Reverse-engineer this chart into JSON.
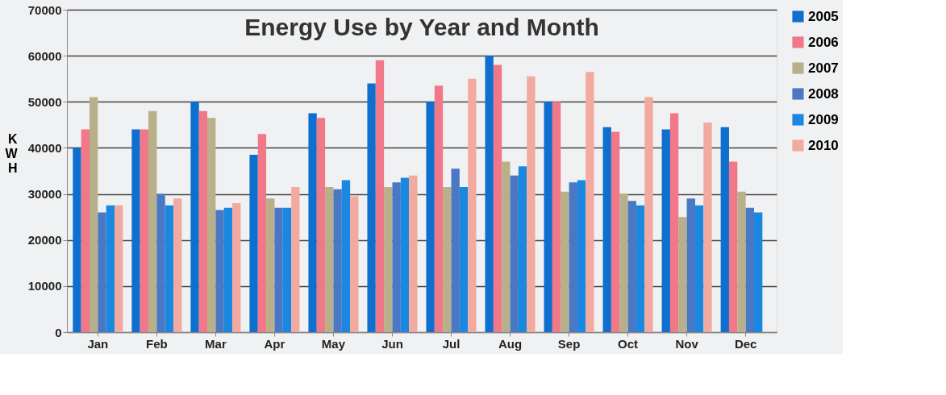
{
  "chart_data": {
    "type": "bar",
    "title": "Energy Use by Year and Month",
    "ylabel": "KWH",
    "categories": [
      "Jan",
      "Feb",
      "Mar",
      "Apr",
      "May",
      "Jun",
      "Jul",
      "Aug",
      "Sep",
      "Oct",
      "Nov",
      "Dec"
    ],
    "series": [
      {
        "name": "2005",
        "color": "#0f6fce",
        "values": [
          40000,
          44000,
          50000,
          38500,
          47500,
          54000,
          50000,
          60000,
          50000,
          44500,
          44000,
          44500
        ]
      },
      {
        "name": "2006",
        "color": "#f07888",
        "values": [
          44000,
          44000,
          48000,
          43000,
          46500,
          59000,
          53500,
          58000,
          50000,
          43500,
          47500,
          37000
        ]
      },
      {
        "name": "2007",
        "color": "#b8b08a",
        "values": [
          51000,
          48000,
          46500,
          29000,
          31500,
          31500,
          31500,
          37000,
          30500,
          30000,
          25000,
          30500
        ]
      },
      {
        "name": "2008",
        "color": "#4a78c4",
        "values": [
          26000,
          30000,
          26500,
          27000,
          31000,
          32500,
          35500,
          34000,
          32500,
          28500,
          29000,
          27000
        ]
      },
      {
        "name": "2009",
        "color": "#1a88e0",
        "values": [
          27500,
          27500,
          27000,
          27000,
          33000,
          33500,
          31500,
          36000,
          33000,
          27500,
          27500,
          26000
        ]
      },
      {
        "name": "2010",
        "color": "#f2aaa0",
        "values": [
          27500,
          29000,
          28000,
          31500,
          29500,
          34000,
          55000,
          55500,
          56500,
          51000,
          45500,
          null
        ]
      }
    ],
    "ylim": [
      0,
      70000
    ],
    "yticks": [
      0,
      10000,
      20000,
      30000,
      40000,
      50000,
      60000,
      70000
    ],
    "grid": "y",
    "legend": "right"
  }
}
